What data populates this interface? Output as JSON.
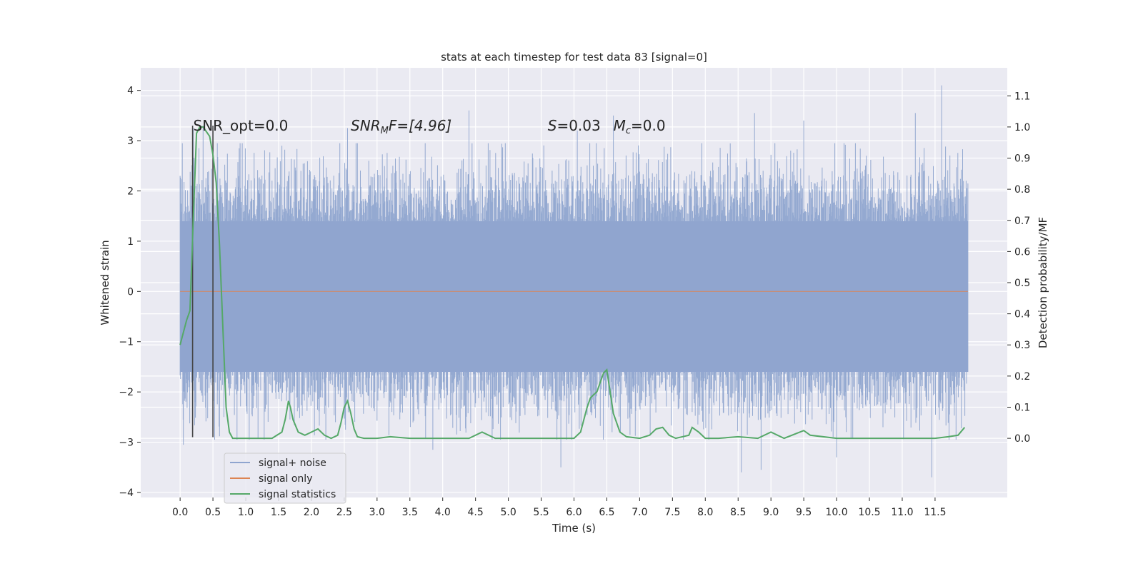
{
  "chart_data": {
    "type": "line",
    "title": "stats at each timestep for test data 83 [signal=0]",
    "xlabel": "Time (s)",
    "ylabel": "Whitened strain",
    "ylabel_right": "Detection probability/MF",
    "xlim": [
      -0.6,
      12.6
    ],
    "ylim": [
      -4.1,
      4.45
    ],
    "ylim_right": [
      -0.19,
      1.19
    ],
    "x_ticks": [
      0.0,
      0.5,
      1.0,
      1.5,
      2.0,
      2.5,
      3.0,
      3.5,
      4.0,
      4.5,
      5.0,
      5.5,
      6.0,
      6.5,
      7.0,
      7.5,
      8.0,
      8.5,
      9.0,
      9.5,
      10.0,
      10.5,
      11.0,
      11.5
    ],
    "x_tick_labels": [
      "0.0",
      "0.5",
      "1.0",
      "1.5",
      "2.0",
      "2.5",
      "3.0",
      "3.5",
      "4.0",
      "4.5",
      "5.0",
      "5.5",
      "6.0",
      "6.5",
      "7.0",
      "7.5",
      "8.0",
      "8.5",
      "9.0",
      "9.5",
      "10.0",
      "10.5",
      "11.0",
      "11.5"
    ],
    "y_ticks": [
      -4,
      -3,
      -2,
      -1,
      0,
      1,
      2,
      3,
      4
    ],
    "y_tick_labels": [
      "−4",
      "−3",
      "−2",
      "−1",
      "0",
      "1",
      "2",
      "3",
      "4"
    ],
    "y_right_ticks": [
      0.0,
      0.1,
      0.2,
      0.3,
      0.4,
      0.5,
      0.6,
      0.7,
      0.8,
      0.9,
      1.0,
      1.1
    ],
    "y_right_tick_labels": [
      "0.0",
      "0.1",
      "0.2",
      "0.3",
      "0.4",
      "0.5",
      "0.6",
      "0.7",
      "0.8",
      "0.9",
      "1.0",
      "1.1"
    ],
    "grid": true,
    "legend_position": "lower-left",
    "annotations": {
      "snr_opt": "SNR_opt=0.0",
      "snr_mf_main": "SNR",
      "snr_mf_sub": "M",
      "snr_mf_rest": "F=[4.96]",
      "s_main": "S",
      "s_rest": "=0.03",
      "mc_main": "M",
      "mc_sub": "c",
      "mc_rest": "=0.0"
    },
    "vertical_markers": [
      0.19,
      0.5
    ],
    "series": [
      {
        "name": "signal+ noise",
        "color": "#8fa5cf",
        "axis": "left",
        "x_range": [
          0.0,
          12.0
        ],
        "core_band": [
          -1.6,
          1.4
        ],
        "typical_envelope": [
          -2.3,
          2.3
        ],
        "peaks": [
          {
            "x": 0.0,
            "y": 2.3
          },
          {
            "x": 0.05,
            "y": -3.05
          },
          {
            "x": 0.2,
            "y": 3.25
          },
          {
            "x": 0.35,
            "y": 3.3
          },
          {
            "x": 0.9,
            "y": 2.85
          },
          {
            "x": 1.55,
            "y": 2.9
          },
          {
            "x": 2.55,
            "y": 3.25
          },
          {
            "x": 3.85,
            "y": -3.15
          },
          {
            "x": 4.4,
            "y": 3.6
          },
          {
            "x": 5.8,
            "y": -3.5
          },
          {
            "x": 6.05,
            "y": 3.2
          },
          {
            "x": 6.6,
            "y": 3.5
          },
          {
            "x": 8.55,
            "y": -3.6
          },
          {
            "x": 8.75,
            "y": 3.55
          },
          {
            "x": 8.85,
            "y": -3.55
          },
          {
            "x": 9.5,
            "y": 3.4
          },
          {
            "x": 10.0,
            "y": -3.3
          },
          {
            "x": 11.2,
            "y": 3.55
          },
          {
            "x": 11.45,
            "y": -3.7
          },
          {
            "x": 11.6,
            "y": 4.1
          }
        ]
      },
      {
        "name": "signal only",
        "color": "#dd8452",
        "axis": "left",
        "x": [
          0.0,
          12.0
        ],
        "y": [
          0.0,
          0.0
        ]
      },
      {
        "name": "signal statistics",
        "color": "#55a868",
        "axis": "right",
        "x": [
          0.0,
          0.1,
          0.15,
          0.2,
          0.25,
          0.3,
          0.35,
          0.45,
          0.5,
          0.55,
          0.6,
          0.65,
          0.7,
          0.75,
          0.8,
          0.9,
          1.0,
          1.2,
          1.4,
          1.55,
          1.6,
          1.65,
          1.68,
          1.72,
          1.8,
          1.9,
          1.95,
          2.0,
          2.1,
          2.2,
          2.3,
          2.4,
          2.45,
          2.5,
          2.55,
          2.6,
          2.65,
          2.7,
          2.8,
          3.0,
          3.2,
          3.5,
          4.0,
          4.4,
          4.6,
          4.8,
          5.0,
          5.5,
          5.8,
          6.0,
          6.1,
          6.15,
          6.2,
          6.25,
          6.3,
          6.35,
          6.4,
          6.45,
          6.5,
          6.55,
          6.6,
          6.7,
          6.8,
          7.0,
          7.15,
          7.25,
          7.35,
          7.45,
          7.55,
          7.75,
          7.8,
          7.9,
          8.0,
          8.2,
          8.5,
          8.8,
          9.0,
          9.2,
          9.5,
          9.6,
          10.0,
          10.5,
          11.0,
          11.5,
          11.7,
          11.85,
          11.95
        ],
        "y": [
          0.3,
          0.38,
          0.41,
          0.7,
          0.98,
          1.0,
          1.0,
          0.97,
          0.91,
          0.82,
          0.62,
          0.36,
          0.1,
          0.02,
          0.0,
          0.0,
          0.0,
          0.0,
          0.0,
          0.02,
          0.06,
          0.12,
          0.1,
          0.06,
          0.02,
          0.01,
          0.015,
          0.02,
          0.03,
          0.01,
          0.0,
          0.01,
          0.05,
          0.1,
          0.12,
          0.08,
          0.03,
          0.005,
          0.0,
          0.0,
          0.005,
          0.0,
          0.0,
          0.0,
          0.02,
          0.0,
          0.0,
          0.0,
          0.0,
          0.0,
          0.02,
          0.06,
          0.1,
          0.13,
          0.14,
          0.15,
          0.18,
          0.21,
          0.22,
          0.15,
          0.08,
          0.02,
          0.005,
          0.0,
          0.01,
          0.03,
          0.035,
          0.01,
          0.0,
          0.01,
          0.035,
          0.02,
          0.0,
          0.0,
          0.005,
          0.0,
          0.02,
          0.0,
          0.025,
          0.01,
          0.0,
          0.0,
          0.0,
          0.0,
          0.005,
          0.01,
          0.035
        ]
      }
    ]
  }
}
